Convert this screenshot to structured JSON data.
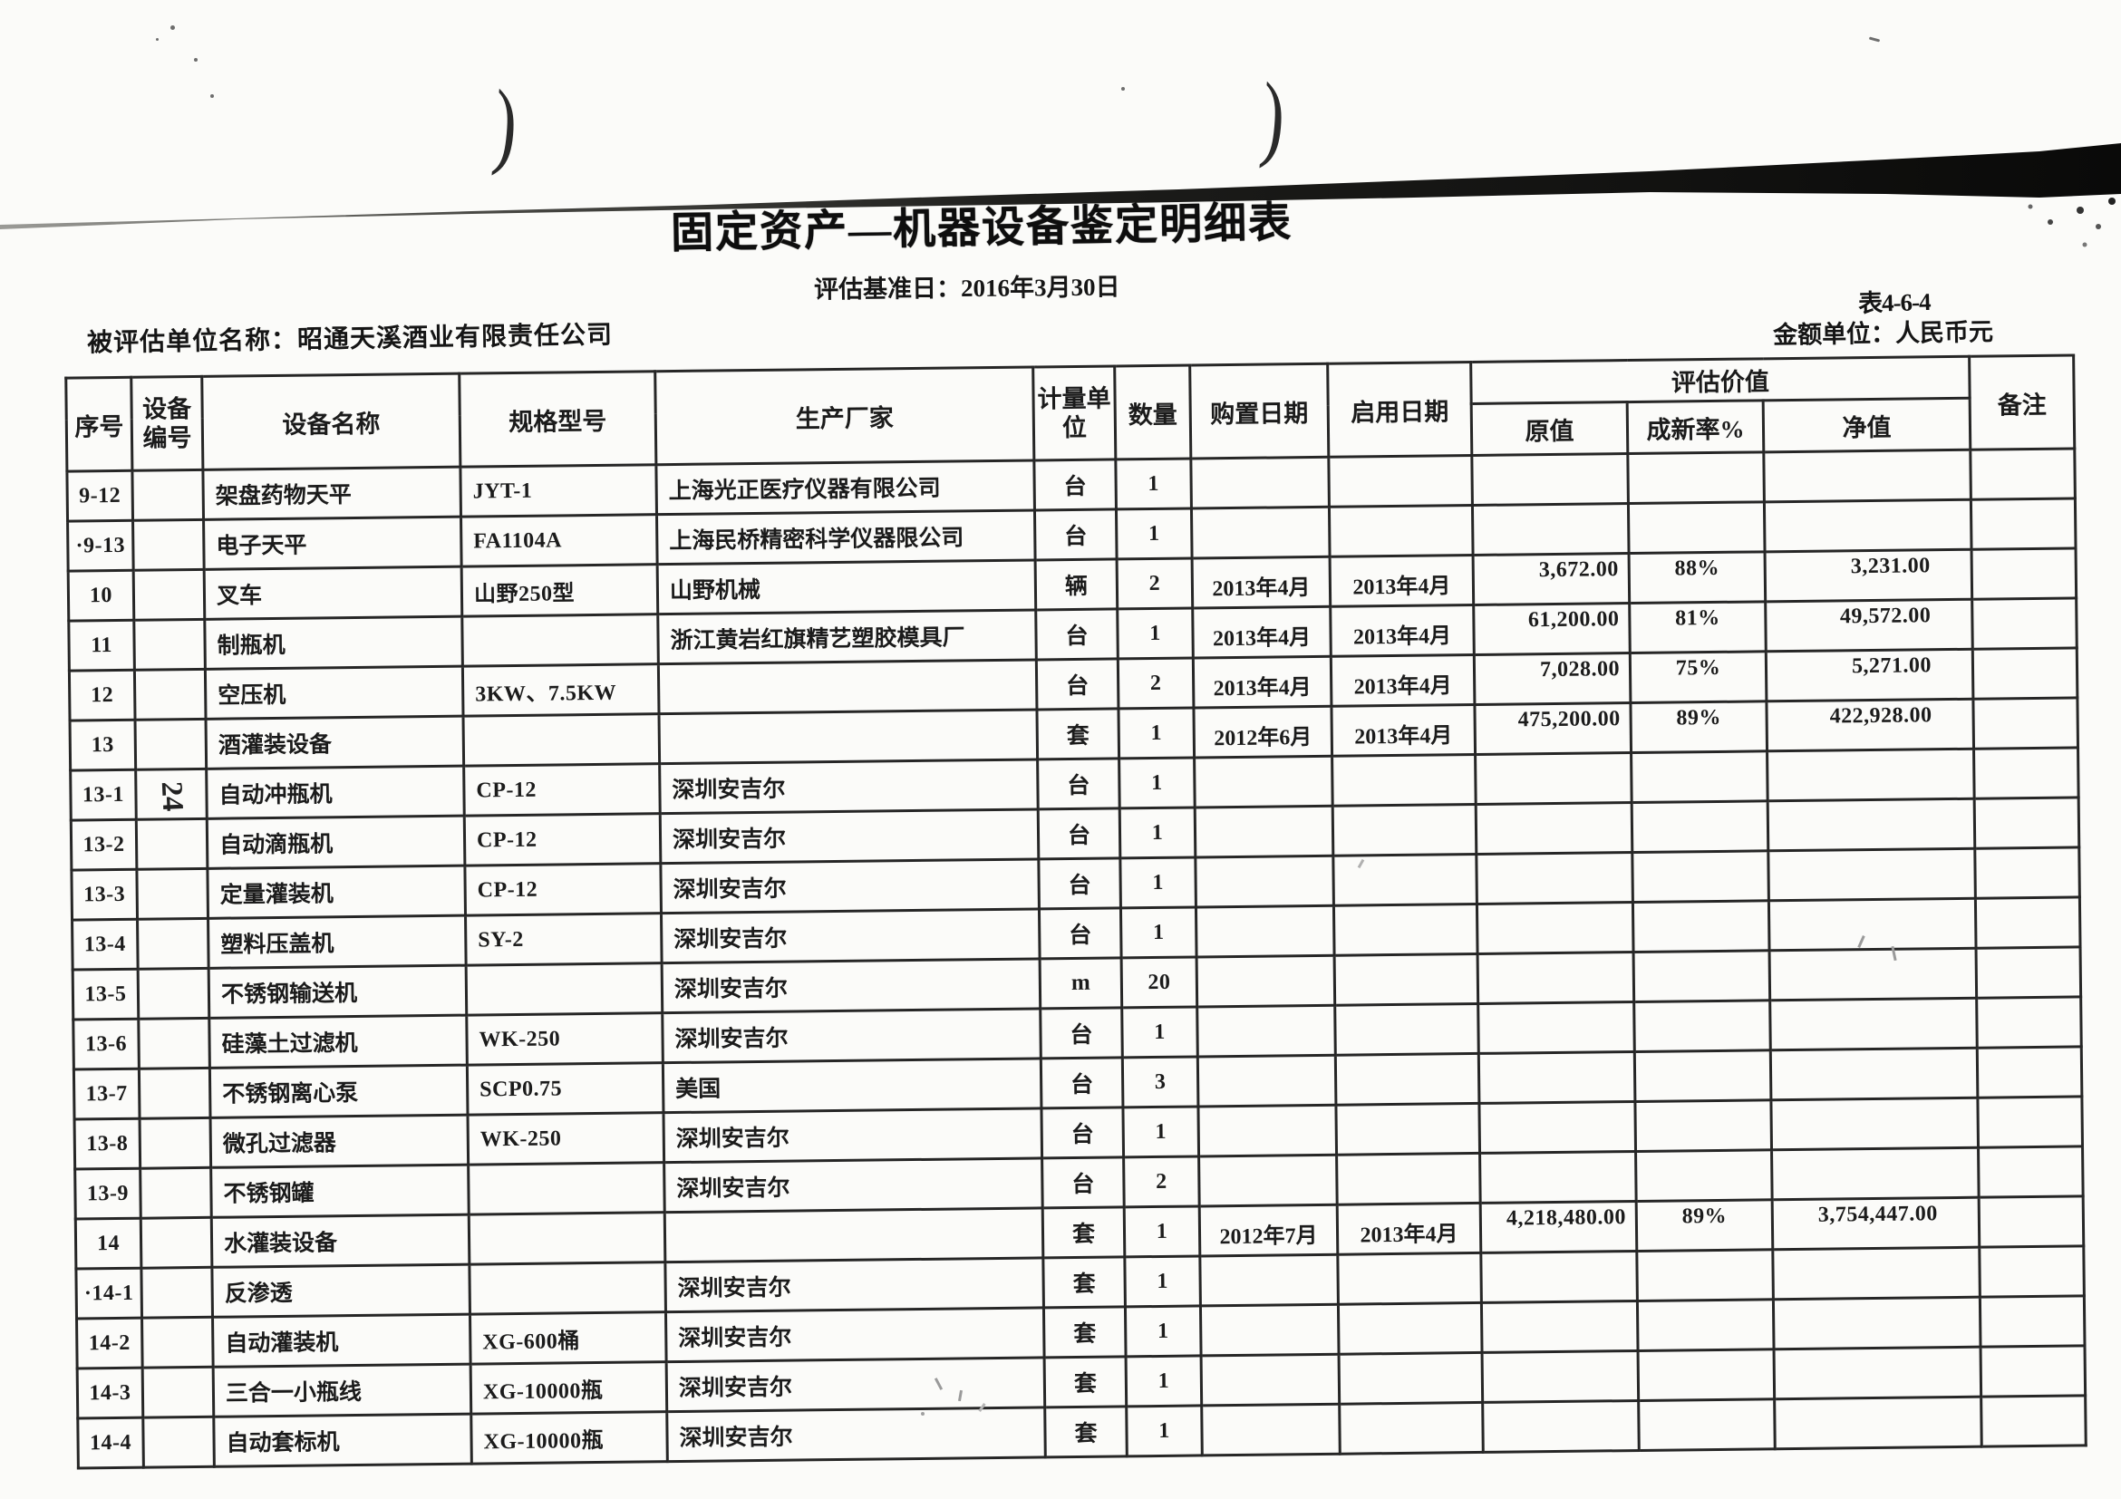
{
  "page": {
    "title": "固定资产—机器设备鉴定明细表",
    "valuation_date_label": "评估基准日：2016年3月30日",
    "table_code": "表4-6-4",
    "entity_label": "被评估单位名称：昭通天溪酒业有限责任公司",
    "currency_label": "金额单位：人民币元",
    "paren_left": ")",
    "paren_right": ")"
  },
  "table": {
    "headers": {
      "serial": "序号",
      "equip_no": "设备编号",
      "name": "设备名称",
      "model": "规格型号",
      "manufacturer": "生产厂家",
      "unit": "计量单位",
      "qty": "数量",
      "purchase_date": "购置日期",
      "start_date": "启用日期",
      "appraisal_group": "评估价值",
      "original_value": "原值",
      "new_rate": "成新率%",
      "net_value": "净值",
      "remark": "备注"
    },
    "rows": [
      {
        "serial": "9-12",
        "equip_no": "",
        "name": "架盘药物天平",
        "model": "JYT-1",
        "manufacturer": "上海光正医疗仪器有限公司",
        "unit": "台",
        "qty": "1",
        "purchase_date": "",
        "start_date": "",
        "original_value": "",
        "new_rate": "",
        "net_value": "",
        "remark": ""
      },
      {
        "serial": "·9-13",
        "equip_no": "",
        "name": "电子天平",
        "model": "FA1104A",
        "manufacturer": "上海民桥精密科学仪器限公司",
        "unit": "台",
        "qty": "1",
        "purchase_date": "",
        "start_date": "",
        "original_value": "",
        "new_rate": "",
        "net_value": "",
        "remark": ""
      },
      {
        "serial": "10",
        "equip_no": "",
        "name": "叉车",
        "model": "山野250型",
        "manufacturer": "山野机械",
        "unit": "辆",
        "qty": "2",
        "purchase_date": "2013年4月",
        "start_date": "2013年4月",
        "original_value": "3,672.00",
        "new_rate": "88%",
        "net_value": "3,231.00",
        "remark": ""
      },
      {
        "serial": "11",
        "equip_no": "",
        "name": "制瓶机",
        "model": "",
        "manufacturer": "浙江黄岩红旗精艺塑胶模具厂",
        "unit": "台",
        "qty": "1",
        "purchase_date": "2013年4月",
        "start_date": "2013年4月",
        "original_value": "61,200.00",
        "new_rate": "81%",
        "net_value": "49,572.00",
        "remark": ""
      },
      {
        "serial": "12",
        "equip_no": "",
        "name": "空压机",
        "model": "3KW、7.5KW",
        "manufacturer": "",
        "unit": "台",
        "qty": "2",
        "purchase_date": "2013年4月",
        "start_date": "2013年4月",
        "original_value": "7,028.00",
        "new_rate": "75%",
        "net_value": "5,271.00",
        "remark": ""
      },
      {
        "serial": "13",
        "equip_no": "",
        "name": "酒灌装设备",
        "model": "",
        "manufacturer": "",
        "unit": "套",
        "qty": "1",
        "purchase_date": "2012年6月",
        "start_date": "2013年4月",
        "original_value": "475,200.00",
        "new_rate": "89%",
        "net_value": "422,928.00",
        "remark": ""
      },
      {
        "serial": "13-1",
        "equip_no": "24",
        "equip_no_rotated": true,
        "name": "自动冲瓶机",
        "model": "CP-12",
        "manufacturer": "深圳安吉尔",
        "unit": "台",
        "qty": "1",
        "purchase_date": "",
        "start_date": "",
        "original_value": "",
        "new_rate": "",
        "net_value": "",
        "remark": ""
      },
      {
        "serial": "13-2",
        "equip_no": "",
        "name": "自动滴瓶机",
        "model": "CP-12",
        "manufacturer": "深圳安吉尔",
        "unit": "台",
        "qty": "1",
        "purchase_date": "",
        "start_date": "",
        "original_value": "",
        "new_rate": "",
        "net_value": "",
        "remark": ""
      },
      {
        "serial": "13-3",
        "equip_no": "",
        "name": "定量灌装机",
        "model": "CP-12",
        "manufacturer": "深圳安吉尔",
        "unit": "台",
        "qty": "1",
        "purchase_date": "",
        "start_date": "",
        "original_value": "",
        "new_rate": "",
        "net_value": "",
        "remark": ""
      },
      {
        "serial": "13-4",
        "equip_no": "",
        "name": "塑料压盖机",
        "model": "SY-2",
        "manufacturer": "深圳安吉尔",
        "unit": "台",
        "qty": "1",
        "purchase_date": "",
        "start_date": "",
        "original_value": "",
        "new_rate": "",
        "net_value": "",
        "remark": ""
      },
      {
        "serial": "13-5",
        "equip_no": "",
        "name": "不锈钢输送机",
        "model": "",
        "manufacturer": "深圳安吉尔",
        "unit": "m",
        "qty": "20",
        "purchase_date": "",
        "start_date": "",
        "original_value": "",
        "new_rate": "",
        "net_value": "",
        "remark": ""
      },
      {
        "serial": "13-6",
        "equip_no": "",
        "name": "硅藻土过滤机",
        "model": "WK-250",
        "manufacturer": "深圳安吉尔",
        "unit": "台",
        "qty": "1",
        "purchase_date": "",
        "start_date": "",
        "original_value": "",
        "new_rate": "",
        "net_value": "",
        "remark": ""
      },
      {
        "serial": "13-7",
        "equip_no": "",
        "name": "不锈钢离心泵",
        "model": "SCP0.75",
        "manufacturer": "美国",
        "unit": "台",
        "qty": "3",
        "purchase_date": "",
        "start_date": "",
        "original_value": "",
        "new_rate": "",
        "net_value": "",
        "remark": ""
      },
      {
        "serial": "13-8",
        "equip_no": "",
        "name": "微孔过滤器",
        "model": "WK-250",
        "manufacturer": "深圳安吉尔",
        "unit": "台",
        "qty": "1",
        "purchase_date": "",
        "start_date": "",
        "original_value": "",
        "new_rate": "",
        "net_value": "",
        "remark": ""
      },
      {
        "serial": "13-9",
        "equip_no": "",
        "name": "不锈钢罐",
        "model": "",
        "manufacturer": "深圳安吉尔",
        "unit": "台",
        "qty": "2",
        "purchase_date": "",
        "start_date": "",
        "original_value": "",
        "new_rate": "",
        "net_value": "",
        "remark": ""
      },
      {
        "serial": "14",
        "equip_no": "",
        "name": "水灌装设备",
        "model": "",
        "manufacturer": "",
        "unit": "套",
        "qty": "1",
        "purchase_date": "2012年7月",
        "start_date": "2013年4月",
        "original_value": "4,218,480.00",
        "new_rate": "89%",
        "net_value": "3,754,447.00",
        "remark": ""
      },
      {
        "serial": "·14-1",
        "equip_no": "",
        "name": "反渗透",
        "model": "",
        "manufacturer": "深圳安吉尔",
        "unit": "套",
        "qty": "1",
        "purchase_date": "",
        "start_date": "",
        "original_value": "",
        "new_rate": "",
        "net_value": "",
        "remark": ""
      },
      {
        "serial": "14-2",
        "equip_no": "",
        "name": "自动灌装机",
        "model": "XG-600桶",
        "manufacturer": "深圳安吉尔",
        "unit": "套",
        "qty": "1",
        "purchase_date": "",
        "start_date": "",
        "original_value": "",
        "new_rate": "",
        "net_value": "",
        "remark": ""
      },
      {
        "serial": "14-3",
        "equip_no": "",
        "name": "三合一小瓶线",
        "model": "XG-10000瓶",
        "manufacturer": "深圳安吉尔",
        "unit": "套",
        "qty": "1",
        "purchase_date": "",
        "start_date": "",
        "original_value": "",
        "new_rate": "",
        "net_value": "",
        "remark": ""
      },
      {
        "serial": "14-4",
        "equip_no": "",
        "name": "自动套标机",
        "model": "XG-10000瓶",
        "manufacturer": "深圳安吉尔",
        "unit": "套",
        "qty": "1",
        "purchase_date": "",
        "start_date": "",
        "original_value": "",
        "new_rate": "",
        "net_value": "",
        "remark": ""
      }
    ]
  }
}
